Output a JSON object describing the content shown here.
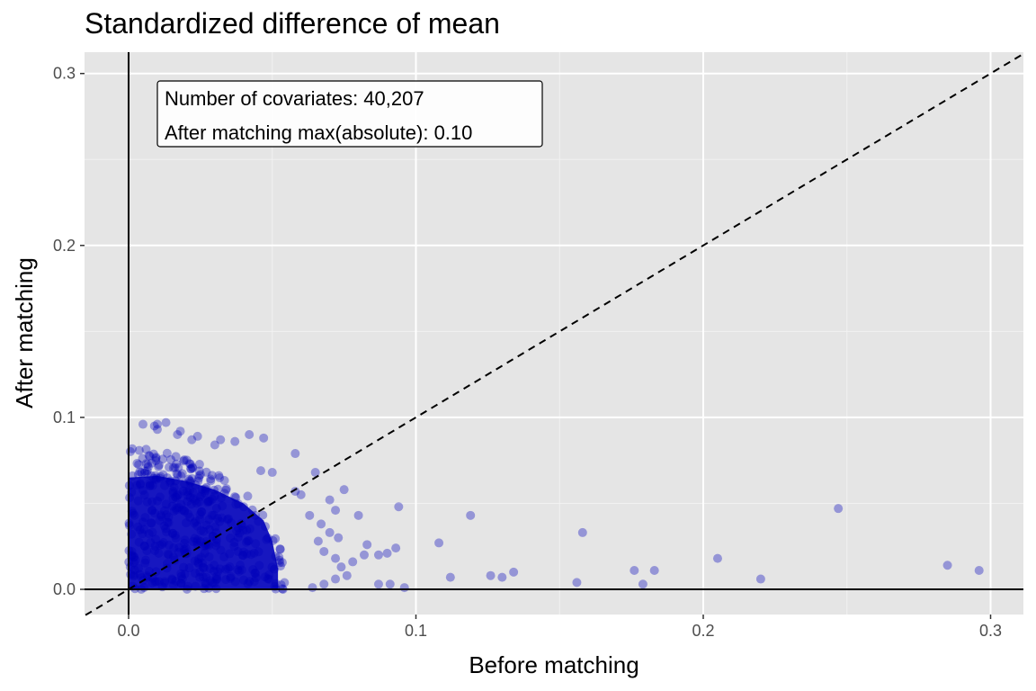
{
  "chart_data": {
    "type": "scatter",
    "title": "Standardized difference of mean",
    "xlabel": "Before matching",
    "ylabel": "After matching",
    "xlim": [
      -0.015,
      0.31
    ],
    "ylim": [
      -0.015,
      0.31
    ],
    "x_ticks": [
      0.0,
      0.1,
      0.2,
      0.3
    ],
    "y_ticks": [
      0.0,
      0.1,
      0.2,
      0.3
    ],
    "x_tick_labels": [
      "0.0",
      "0.1",
      "0.2",
      "0.3"
    ],
    "y_tick_labels": [
      "0.0",
      "0.1",
      "0.2",
      "0.3"
    ],
    "grid": true,
    "reference_line": "y = x (dashed)",
    "point_color": "#0000BB",
    "point_opacity": 0.35,
    "annotations": [
      "Number of covariates: 40,207",
      "After matching max(absolute): 0.10"
    ],
    "dense_region": {
      "x_range": [
        0.0,
        0.05
      ],
      "y_range": [
        0.0,
        0.065
      ],
      "approx_count": 40207
    },
    "points": [
      {
        "x": 0.005,
        "y": 0.096
      },
      {
        "x": 0.009,
        "y": 0.095
      },
      {
        "x": 0.01,
        "y": 0.093
      },
      {
        "x": 0.01,
        "y": 0.096
      },
      {
        "x": 0.013,
        "y": 0.097
      },
      {
        "x": 0.017,
        "y": 0.09
      },
      {
        "x": 0.018,
        "y": 0.092
      },
      {
        "x": 0.022,
        "y": 0.087
      },
      {
        "x": 0.024,
        "y": 0.089
      },
      {
        "x": 0.03,
        "y": 0.084
      },
      {
        "x": 0.032,
        "y": 0.087
      },
      {
        "x": 0.037,
        "y": 0.086
      },
      {
        "x": 0.042,
        "y": 0.09
      },
      {
        "x": 0.047,
        "y": 0.088
      },
      {
        "x": 0.058,
        "y": 0.079
      },
      {
        "x": 0.046,
        "y": 0.069
      },
      {
        "x": 0.05,
        "y": 0.068
      },
      {
        "x": 0.058,
        "y": 0.057
      },
      {
        "x": 0.06,
        "y": 0.055
      },
      {
        "x": 0.065,
        "y": 0.068
      },
      {
        "x": 0.07,
        "y": 0.052
      },
      {
        "x": 0.072,
        "y": 0.046
      },
      {
        "x": 0.075,
        "y": 0.058
      },
      {
        "x": 0.08,
        "y": 0.043
      },
      {
        "x": 0.063,
        "y": 0.043
      },
      {
        "x": 0.067,
        "y": 0.038
      },
      {
        "x": 0.07,
        "y": 0.033
      },
      {
        "x": 0.073,
        "y": 0.03
      },
      {
        "x": 0.066,
        "y": 0.028
      },
      {
        "x": 0.068,
        "y": 0.022
      },
      {
        "x": 0.072,
        "y": 0.018
      },
      {
        "x": 0.074,
        "y": 0.013
      },
      {
        "x": 0.078,
        "y": 0.016
      },
      {
        "x": 0.083,
        "y": 0.026
      },
      {
        "x": 0.082,
        "y": 0.02
      },
      {
        "x": 0.087,
        "y": 0.02
      },
      {
        "x": 0.09,
        "y": 0.021
      },
      {
        "x": 0.093,
        "y": 0.024
      },
      {
        "x": 0.094,
        "y": 0.048
      },
      {
        "x": 0.087,
        "y": 0.003
      },
      {
        "x": 0.091,
        "y": 0.003
      },
      {
        "x": 0.096,
        "y": 0.001
      },
      {
        "x": 0.072,
        "y": 0.006
      },
      {
        "x": 0.068,
        "y": 0.003
      },
      {
        "x": 0.064,
        "y": 0.001
      },
      {
        "x": 0.076,
        "y": 0.008
      },
      {
        "x": 0.108,
        "y": 0.027
      },
      {
        "x": 0.112,
        "y": 0.007
      },
      {
        "x": 0.119,
        "y": 0.043
      },
      {
        "x": 0.126,
        "y": 0.008
      },
      {
        "x": 0.13,
        "y": 0.007
      },
      {
        "x": 0.134,
        "y": 0.01
      },
      {
        "x": 0.156,
        "y": 0.004
      },
      {
        "x": 0.158,
        "y": 0.033
      },
      {
        "x": 0.176,
        "y": 0.011
      },
      {
        "x": 0.179,
        "y": 0.003
      },
      {
        "x": 0.183,
        "y": 0.011
      },
      {
        "x": 0.205,
        "y": 0.018
      },
      {
        "x": 0.22,
        "y": 0.006
      },
      {
        "x": 0.247,
        "y": 0.047
      },
      {
        "x": 0.285,
        "y": 0.014
      },
      {
        "x": 0.296,
        "y": 0.011
      }
    ]
  }
}
